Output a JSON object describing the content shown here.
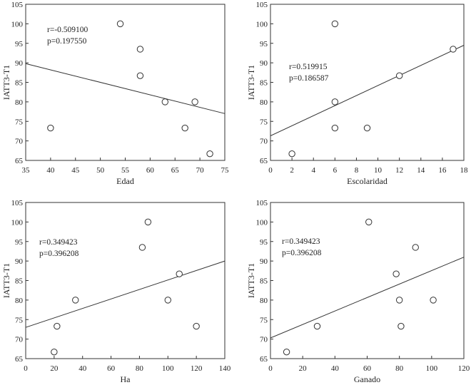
{
  "chart_data": [
    {
      "type": "scatter",
      "id": "edad",
      "xlabel": "Edad",
      "ylabel": "IATT3-T1",
      "xlim": [
        35,
        75
      ],
      "ylim": [
        65,
        105
      ],
      "xticks": [
        35,
        40,
        45,
        50,
        55,
        60,
        65,
        70,
        75
      ],
      "yticks": [
        65,
        70,
        75,
        80,
        85,
        90,
        95,
        100,
        105
      ],
      "points": [
        [
          40,
          73.3
        ],
        [
          54,
          100
        ],
        [
          58,
          93.5
        ],
        [
          58,
          86.7
        ],
        [
          63,
          80
        ],
        [
          67,
          73.3
        ],
        [
          69,
          80
        ],
        [
          72,
          66.7
        ]
      ],
      "fit": {
        "x": [
          35,
          75
        ],
        "y": [
          89.8,
          77.0
        ]
      },
      "annotation": [
        "r=-0.509100",
        "p=0.197550"
      ]
    },
    {
      "type": "scatter",
      "id": "escolaridad",
      "xlabel": "Escolaridad",
      "ylabel": "IATT3-T1",
      "xlim": [
        0,
        18
      ],
      "ylim": [
        65,
        105
      ],
      "xticks": [
        0,
        2,
        4,
        6,
        8,
        10,
        12,
        14,
        16,
        18
      ],
      "yticks": [
        65,
        70,
        75,
        80,
        85,
        90,
        95,
        100,
        105
      ],
      "points": [
        [
          2,
          66.7
        ],
        [
          6,
          100
        ],
        [
          6,
          80
        ],
        [
          6,
          73.3
        ],
        [
          9,
          73.3
        ],
        [
          12,
          86.7
        ],
        [
          17,
          93.5
        ]
      ],
      "fit": {
        "x": [
          0,
          18
        ],
        "y": [
          71.3,
          94.5
        ]
      },
      "annotation": [
        "r=0.519915",
        "p=0.186587"
      ]
    },
    {
      "type": "scatter",
      "id": "ha",
      "xlabel": "Ha",
      "ylabel": "IATT3-T1",
      "xlim": [
        0,
        140
      ],
      "ylim": [
        65,
        105
      ],
      "xticks": [
        0,
        20,
        40,
        60,
        80,
        100,
        120,
        140
      ],
      "yticks": [
        65,
        70,
        75,
        80,
        85,
        90,
        95,
        100,
        105
      ],
      "points": [
        [
          20,
          66.7
        ],
        [
          22,
          73.3
        ],
        [
          35,
          80
        ],
        [
          82,
          93.5
        ],
        [
          86,
          100
        ],
        [
          100,
          80
        ],
        [
          108,
          86.7
        ],
        [
          120,
          73.3
        ]
      ],
      "fit": {
        "x": [
          0,
          140
        ],
        "y": [
          73.0,
          90.0
        ]
      },
      "annotation": [
        "r=0.349423",
        "p=0.396208"
      ]
    },
    {
      "type": "scatter",
      "id": "ganado",
      "xlabel": "Ganado",
      "ylabel": "IATT3-T1",
      "xlim": [
        0,
        120
      ],
      "ylim": [
        65,
        105
      ],
      "xticks": [
        0,
        20,
        40,
        60,
        80,
        100,
        120
      ],
      "yticks": [
        65,
        70,
        75,
        80,
        85,
        90,
        95,
        100,
        105
      ],
      "points": [
        [
          10,
          66.7
        ],
        [
          29,
          73.3
        ],
        [
          61,
          100
        ],
        [
          78,
          86.7
        ],
        [
          80,
          80
        ],
        [
          81,
          73.3
        ],
        [
          90,
          93.5
        ],
        [
          101,
          80
        ]
      ],
      "fit": {
        "x": [
          0,
          120
        ],
        "y": [
          70.3,
          91.0
        ]
      },
      "annotation": [
        "r=0.349423",
        "p=0.396208"
      ]
    }
  ]
}
